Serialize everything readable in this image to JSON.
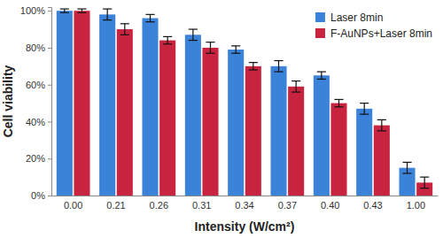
{
  "chart_data": {
    "type": "bar",
    "x_label": "Intensity (W/cm²)",
    "y_label": "Cell viability",
    "categories": [
      "0.00",
      "0.21",
      "0.26",
      "0.31",
      "0.34",
      "0.37",
      "0.40",
      "0.43",
      "1.00"
    ],
    "series": [
      {
        "name": "Laser 8min",
        "color": "#3b82d9",
        "values": [
          100,
          98,
          96,
          87,
          79,
          70,
          65,
          47,
          15
        ],
        "errors": [
          1,
          3,
          2,
          3,
          2,
          3,
          2,
          3,
          3
        ]
      },
      {
        "name": "F-AuNPs+Laser 8min",
        "color": "#c9243f",
        "values": [
          100,
          90,
          84,
          80,
          70,
          59,
          50,
          38,
          7
        ],
        "errors": [
          1,
          3,
          2,
          3,
          2,
          3,
          2,
          3,
          3
        ]
      }
    ],
    "ylim": [
      0,
      102
    ],
    "yticks": [
      {
        "value": 0,
        "label": "0%"
      },
      {
        "value": 20,
        "label": "20%"
      },
      {
        "value": 40,
        "label": "40%"
      },
      {
        "value": 60,
        "label": "60%"
      },
      {
        "value": 80,
        "label": "80%"
      },
      {
        "value": 100,
        "label": "100%"
      }
    ],
    "grid": false,
    "legend": "upper-right"
  }
}
